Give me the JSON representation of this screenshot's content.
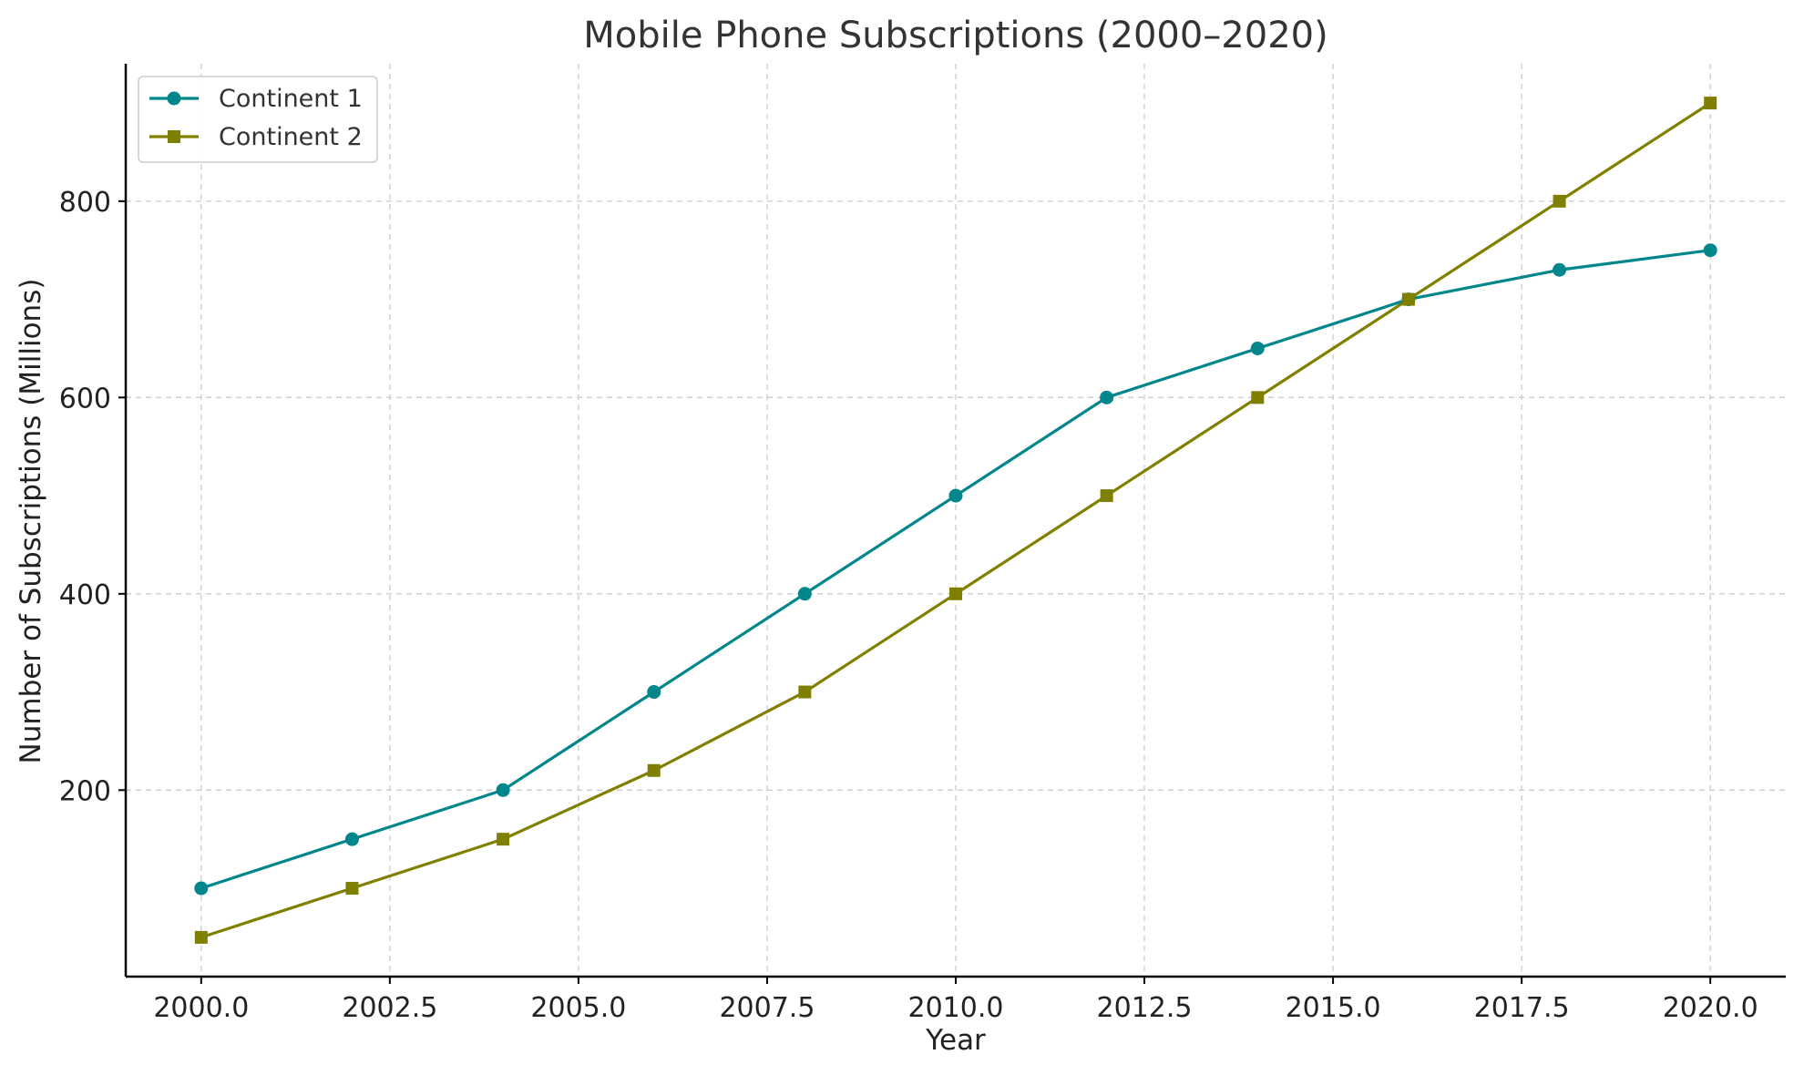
{
  "chart_data": {
    "type": "line",
    "title": "Mobile Phone Subscriptions (2000–2020)",
    "xlabel": "Year",
    "ylabel": "Number of Subscriptions (Millions)",
    "x": [
      2000,
      2002,
      2004,
      2006,
      2008,
      2010,
      2012,
      2014,
      2016,
      2018,
      2020
    ],
    "xlim": [
      1999,
      2021
    ],
    "ylim": [
      10,
      940
    ],
    "x_ticks": [
      2000,
      2002.5,
      2005,
      2007.5,
      2010,
      2012.5,
      2015,
      2017.5,
      2020
    ],
    "x_tick_labels": [
      "2000.0",
      "2002.5",
      "2005.0",
      "2007.5",
      "2010.0",
      "2012.5",
      "2015.0",
      "2017.5",
      "2020.0"
    ],
    "y_ticks": [
      200,
      400,
      600,
      800
    ],
    "y_tick_labels": [
      "200",
      "400",
      "600",
      "800"
    ],
    "grid": true,
    "legend_position": "top-left",
    "series": [
      {
        "name": "Continent 1",
        "color": "#00868b",
        "marker": "circle",
        "values": [
          100,
          150,
          200,
          300,
          400,
          500,
          600,
          650,
          700,
          730,
          750
        ]
      },
      {
        "name": "Continent 2",
        "color": "#808000",
        "marker": "square",
        "values": [
          50,
          100,
          150,
          220,
          300,
          400,
          500,
          600,
          700,
          800,
          900
        ]
      }
    ]
  }
}
